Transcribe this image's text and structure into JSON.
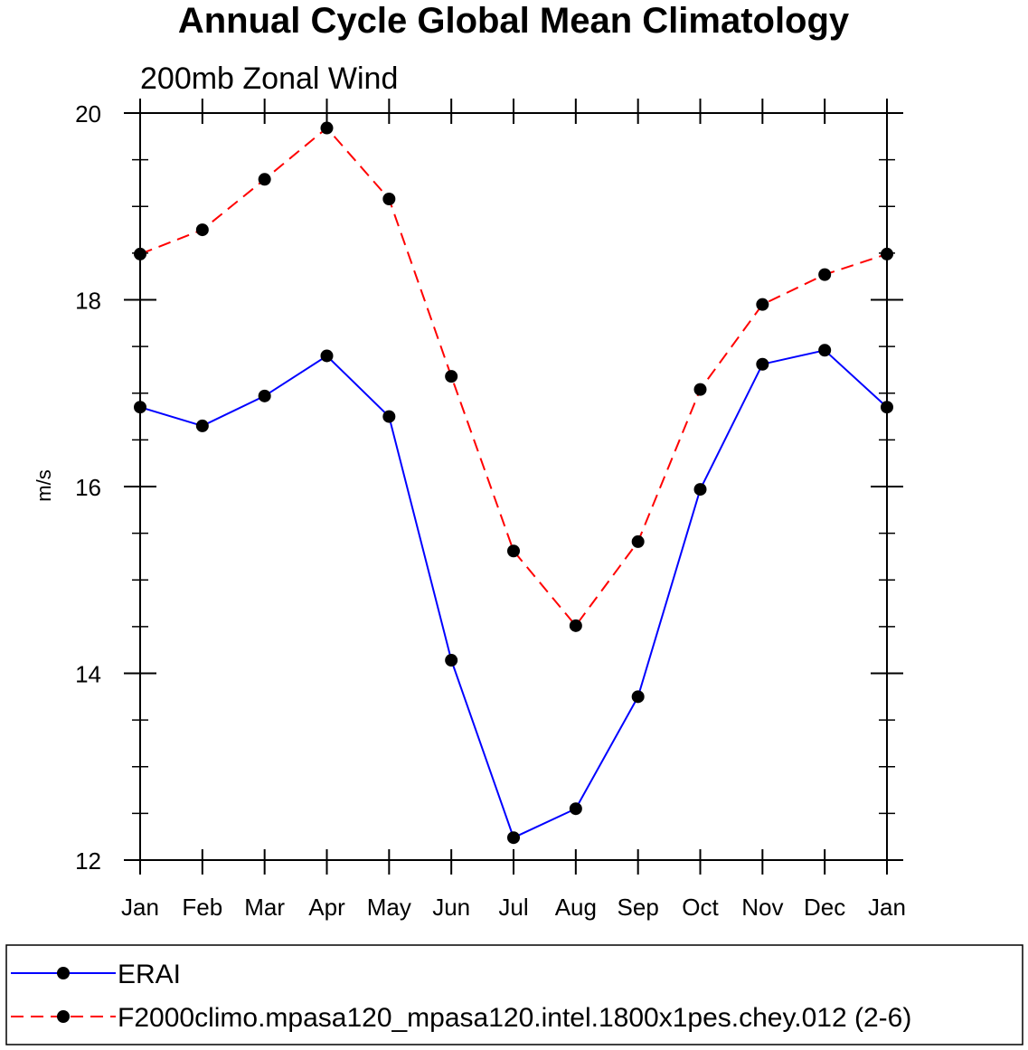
{
  "chart_data": {
    "type": "line",
    "title": "Annual Cycle Global Mean Climatology",
    "subtitle": "200mb Zonal Wind",
    "xlabel": "",
    "ylabel": "m/s",
    "categories": [
      "Jan",
      "Feb",
      "Mar",
      "Apr",
      "May",
      "Jun",
      "Jul",
      "Aug",
      "Sep",
      "Oct",
      "Nov",
      "Dec",
      "Jan"
    ],
    "ylim": [
      12,
      20
    ],
    "yticks": [
      12,
      14,
      16,
      18,
      20
    ],
    "grid": false,
    "legend_position": "bottom",
    "series": [
      {
        "name": "ERAI",
        "color": "#0000ff",
        "line_style": "solid",
        "marker": "filled-circle",
        "values": [
          16.85,
          16.65,
          16.97,
          17.4,
          16.75,
          14.14,
          12.24,
          12.55,
          13.75,
          15.97,
          17.31,
          17.46,
          16.85
        ]
      },
      {
        "name": "F2000climo.mpasa120_mpasa120.intel.1800x1pes.chey.012 (2-6)",
        "color": "#ff0000",
        "line_style": "dashed",
        "marker": "filled-circle",
        "values": [
          18.49,
          18.75,
          19.29,
          19.84,
          19.08,
          17.18,
          15.31,
          14.51,
          15.41,
          17.04,
          17.95,
          18.27,
          18.49
        ]
      }
    ]
  }
}
